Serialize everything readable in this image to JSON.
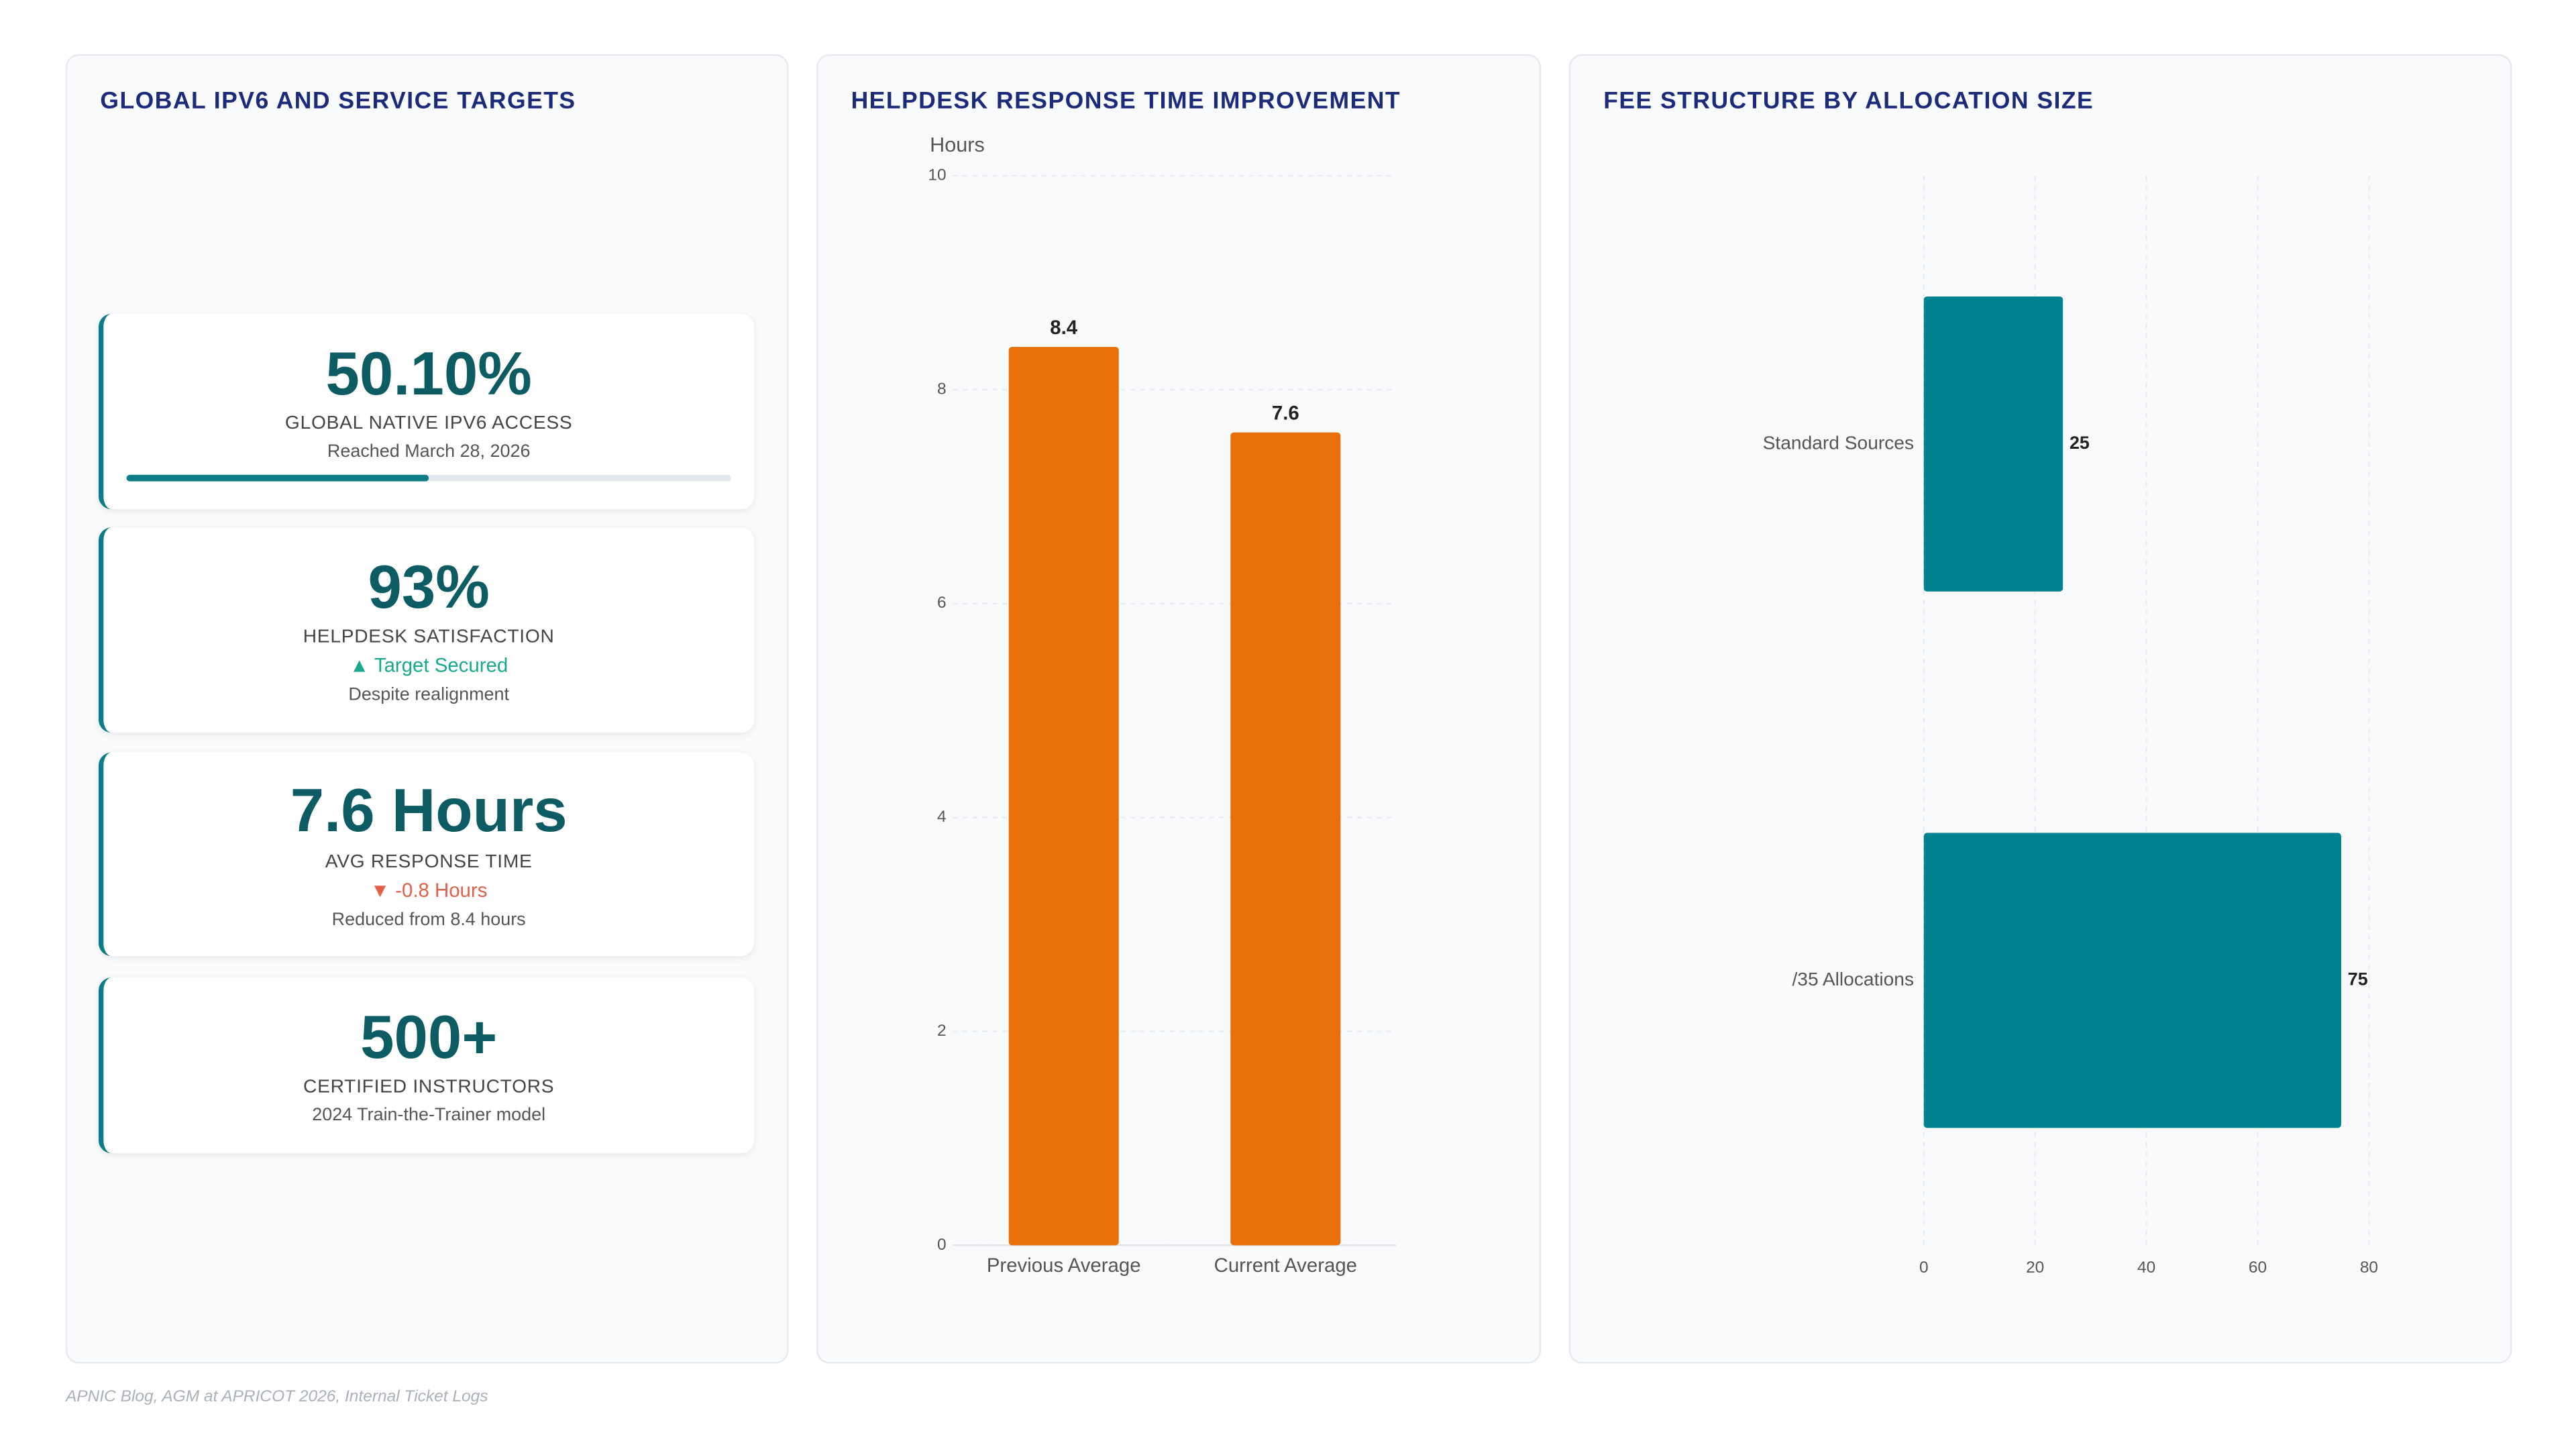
{
  "panel_titles": [
    "GLOBAL IPV6 AND SERVICE TARGETS"
  ],
  "kpi_cards": [
    {
      "value": "50.10%",
      "label": "GLOBAL NATIVE IPV6 ACCESS",
      "note": "Reached March 28, 2026",
      "progress": 50.1
    },
    {
      "value": "93%",
      "label": "HELPDESK SATISFACTION",
      "delta": "▲ Target Secured",
      "delta_color": "#1aa88c",
      "note": "Despite realignment"
    },
    {
      "value": "7.6 Hours",
      "label": "AVG RESPONSE TIME",
      "delta": "▼ -0.8 Hours",
      "delta_color": "#e0604a",
      "note": "Reduced from 8.4 hours"
    },
    {
      "value": "500+",
      "label": "CERTIFIED INSTRUCTORS",
      "note": "2024 Train-the-Trainer model"
    }
  ],
  "chart_data": [
    {
      "type": "bar",
      "title": "HELPDESK RESPONSE TIME IMPROVEMENT",
      "y_label": "Hours",
      "categories": [
        "Previous Average",
        "Current Average"
      ],
      "values": [
        8.4,
        7.6
      ],
      "color": "#e8700a",
      "ylim": [
        0,
        10
      ],
      "yticks": [
        0,
        2,
        4,
        6,
        8,
        10
      ],
      "grid": true
    },
    {
      "type": "hbar",
      "title": "FEE STRUCTURE BY ALLOCATION SIZE",
      "categories": [
        "Standard Sources",
        "/35 Allocations"
      ],
      "values": [
        25,
        75
      ],
      "color": "#00838f",
      "xlim": [
        0,
        80
      ],
      "xticks": [
        0,
        20,
        40,
        60,
        80
      ],
      "grid": true
    }
  ],
  "footer": "APNIC Blog, AGM at APRICOT 2026, Internal Ticket Logs"
}
